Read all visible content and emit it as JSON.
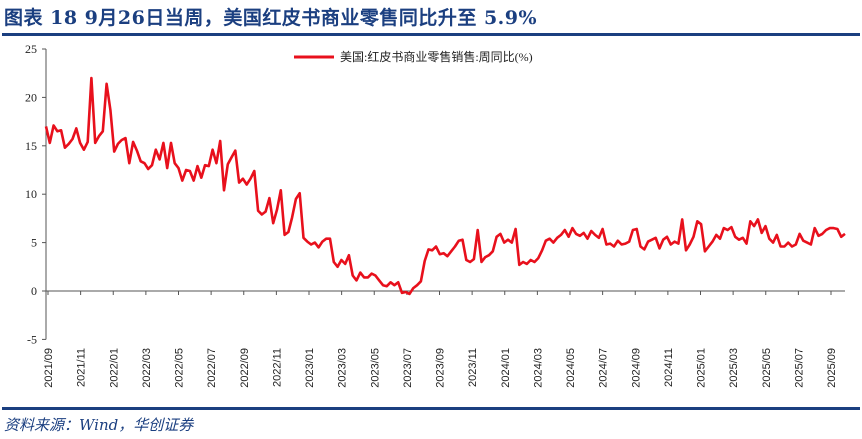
{
  "title": "图表 18  9月26日当周，美国红皮书商业零售同比升至 5.9%",
  "source": "资料来源：Wind，华创证券",
  "colors": {
    "line": "#e8101c",
    "accent": "#1b3f80"
  },
  "chart_data": {
    "type": "line",
    "title": "图表 18  9月26日当周，美国红皮书商业零售同比升至 5.9%",
    "xlabel": "",
    "ylabel": "",
    "ylim": [
      -5,
      25
    ],
    "yticks": [
      "25",
      "20",
      "15",
      "10",
      "5",
      "0",
      "-5"
    ],
    "x_range": [
      "2021-09",
      "2025-09-26"
    ],
    "x_frequency": "weekly",
    "xticks": [
      "2021/09",
      "2021/11",
      "2022/01",
      "2022/03",
      "2022/05",
      "2022/07",
      "2022/09",
      "2022/11",
      "2023/01",
      "2023/03",
      "2023/05",
      "2023/07",
      "2023/09",
      "2023/11",
      "2024/01",
      "2024/03",
      "2024/05",
      "2024/07",
      "2024/09",
      "2024/11",
      "2025/01",
      "2025/03",
      "2025/05",
      "2025/07",
      "2025/09"
    ],
    "legend_position": "top-right",
    "grid": false,
    "series": [
      {
        "name": "美国:红皮书商业零售销售:周同比(%)",
        "values": [
          17.0,
          15.3,
          17.1,
          16.5,
          16.6,
          14.8,
          15.2,
          15.7,
          16.8,
          15.3,
          14.6,
          15.4,
          22.0,
          15.3,
          16.0,
          16.5,
          21.4,
          18.7,
          14.4,
          15.2,
          15.6,
          15.8,
          13.2,
          15.4,
          14.5,
          13.4,
          13.2,
          12.6,
          13.0,
          14.6,
          13.6,
          15.3,
          12.7,
          15.3,
          13.2,
          12.7,
          11.4,
          12.5,
          12.4,
          11.4,
          12.9,
          11.7,
          13.0,
          12.9,
          14.6,
          13.2,
          15.5,
          10.4,
          13.1,
          13.8,
          14.5,
          11.2,
          11.6,
          11.0,
          11.6,
          12.4,
          8.3,
          7.9,
          8.2,
          9.6,
          7.0,
          8.4,
          10.4,
          5.8,
          6.1,
          7.6,
          9.5,
          10.1,
          5.5,
          5.1,
          4.8,
          5.0,
          4.5,
          5.1,
          5.4,
          5.4,
          3.0,
          2.5,
          3.2,
          2.8,
          3.7,
          1.6,
          1.1,
          1.9,
          1.4,
          1.4,
          1.8,
          1.6,
          1.1,
          0.6,
          0.5,
          0.9,
          0.6,
          0.9,
          -0.2,
          -0.1,
          -0.3,
          0.3,
          0.6,
          1.0,
          3.1,
          4.3,
          4.2,
          4.6,
          3.8,
          3.9,
          3.6,
          4.1,
          4.6,
          5.2,
          5.3,
          3.2,
          3.0,
          3.3,
          6.3,
          3.0,
          3.5,
          3.7,
          4.1,
          5.6,
          5.9,
          5.0,
          5.3,
          5.0,
          6.4,
          2.7,
          3.0,
          2.8,
          3.2,
          3.0,
          3.4,
          4.2,
          5.2,
          5.4,
          5.0,
          5.5,
          5.8,
          6.3,
          5.6,
          6.5,
          5.9,
          5.7,
          6.0,
          5.4,
          6.2,
          5.8,
          5.5,
          6.4,
          4.8,
          4.9,
          4.6,
          5.2,
          4.8,
          4.9,
          5.1,
          6.3,
          6.4,
          4.6,
          4.3,
          5.1,
          5.3,
          5.5,
          4.4,
          5.3,
          5.6,
          4.8,
          5.1,
          4.9,
          7.4,
          4.2,
          4.8,
          5.6,
          7.2,
          6.9,
          4.1,
          4.6,
          5.1,
          5.8,
          5.4,
          6.5,
          6.3,
          6.6,
          5.6,
          5.3,
          5.5,
          4.9,
          7.2,
          6.7,
          7.4,
          6.0,
          6.7,
          5.4,
          5.0,
          5.8,
          4.6,
          4.6,
          5.0,
          4.6,
          4.8,
          5.9,
          5.2,
          5.0,
          4.8,
          6.5,
          5.7,
          5.9,
          6.3,
          6.5,
          6.5,
          6.4,
          5.6,
          5.9
        ]
      }
    ]
  }
}
